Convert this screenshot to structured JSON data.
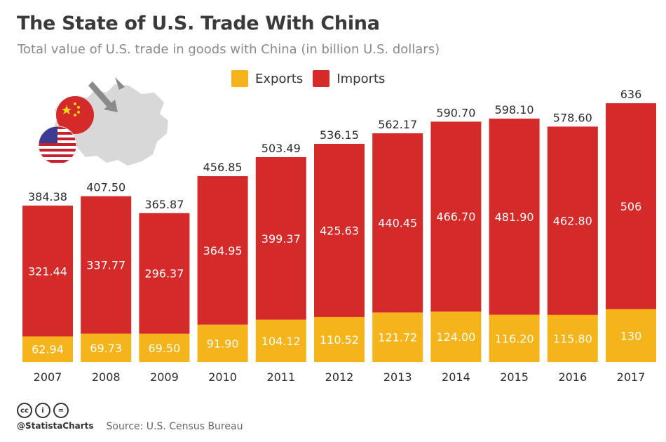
{
  "header": {
    "title": "The State of U.S. Trade With China",
    "subtitle": "Total value of U.S. trade in goods with China (in billion U.S. dollars)"
  },
  "colors": {
    "exports": "#f6b41b",
    "imports": "#d42a2a"
  },
  "icons": [
    "china-map-icon",
    "arrow-icon",
    "china-flag-icon",
    "us-flag-icon",
    "cc-icon",
    "attribution-icon",
    "no-derivatives-icon"
  ],
  "chart_data": {
    "type": "bar",
    "stacked": true,
    "categories": [
      "2007",
      "2008",
      "2009",
      "2010",
      "2011",
      "2012",
      "2013",
      "2014",
      "2015",
      "2016",
      "2017"
    ],
    "series": [
      {
        "name": "Exports",
        "values": [
          62.94,
          69.73,
          69.5,
          91.9,
          104.12,
          110.52,
          121.72,
          124.0,
          116.2,
          115.8,
          130
        ],
        "labels": [
          "62.94",
          "69.73",
          "69.50",
          "91.90",
          "104.12",
          "110.52",
          "121.72",
          "124.00",
          "116.20",
          "115.80",
          "130"
        ]
      },
      {
        "name": "Imports",
        "values": [
          321.44,
          337.77,
          296.37,
          364.95,
          399.37,
          425.63,
          440.45,
          466.7,
          481.9,
          462.8,
          506
        ],
        "labels": [
          "321.44",
          "337.77",
          "296.37",
          "364.95",
          "399.37",
          "425.63",
          "440.45",
          "466.70",
          "481.90",
          "462.80",
          "506"
        ]
      }
    ],
    "totals": [
      384.38,
      407.5,
      365.87,
      456.85,
      503.49,
      536.15,
      562.17,
      590.7,
      598.1,
      578.6,
      636
    ],
    "total_labels": [
      "384.38",
      "407.50",
      "365.87",
      "456.85",
      "503.49",
      "536.15",
      "562.17",
      "590.70",
      "598.10",
      "578.60",
      "636"
    ],
    "legend_position": "top",
    "grid": false
  },
  "footer": {
    "handle": "@StatistaCharts",
    "source": "Source: U.S. Census Bureau",
    "cc_glyphs": [
      "cc",
      "i",
      "="
    ]
  }
}
